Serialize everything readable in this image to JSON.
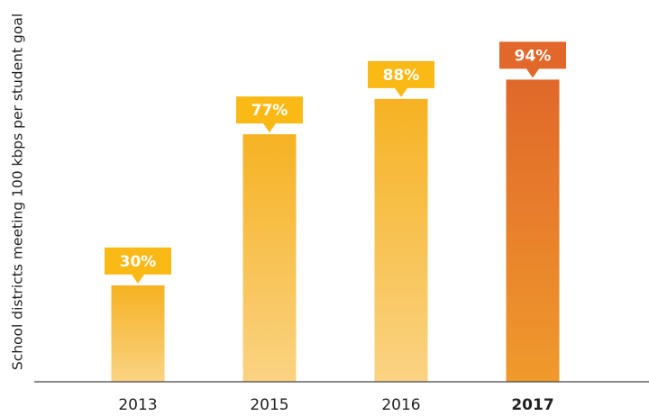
{
  "chart_data": {
    "type": "bar",
    "title": "",
    "xlabel": "",
    "ylabel": "School districts meeting 100 kbps per student goal",
    "categories": [
      "2013",
      "2015",
      "2016",
      "2017"
    ],
    "values": [
      30,
      77,
      88,
      94
    ],
    "data_labels": [
      "30%",
      "77%",
      "88%",
      "94%"
    ],
    "highlight_category": "2017",
    "ylim": [
      0,
      100
    ],
    "grid": false,
    "legend": "none",
    "colors": {
      "bar_top": "#F6B223",
      "bar_bottom": "#FAD383",
      "label_bg": "#FBB915",
      "highlight_top": "#E0682A",
      "highlight_bottom": "#F09A2C",
      "highlight_label_bg": "#E2672A",
      "axis": "#444444"
    }
  }
}
